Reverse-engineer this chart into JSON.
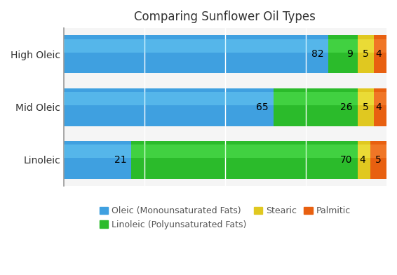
{
  "title": "Comparing Sunflower Oil Types",
  "categories": [
    "Linoleic",
    "Mid Oleic",
    "High Oleic"
  ],
  "series": {
    "Oleic (Monounsaturated Fats)": [
      21,
      65,
      82
    ],
    "Linoleic (Polyunsaturated Fats)": [
      70,
      26,
      9
    ],
    "Stearic": [
      4,
      5,
      5
    ],
    "Palmitic": [
      5,
      4,
      4
    ]
  },
  "colors": {
    "Oleic (Monounsaturated Fats)": "#3FA0E0",
    "Linoleic (Polyunsaturated Fats)": "#2BBB2B",
    "Stearic": "#E0C820",
    "Palmitic": "#E86010"
  },
  "bar_height": 0.72,
  "xlim": [
    0,
    100
  ],
  "background_color": "#FFFFFF",
  "plot_bg_color": "#F5F5F5",
  "title_fontsize": 12,
  "label_fontsize": 10,
  "legend_fontsize": 9,
  "grid_color": "#FFFFFF",
  "axis_color": "#999999"
}
